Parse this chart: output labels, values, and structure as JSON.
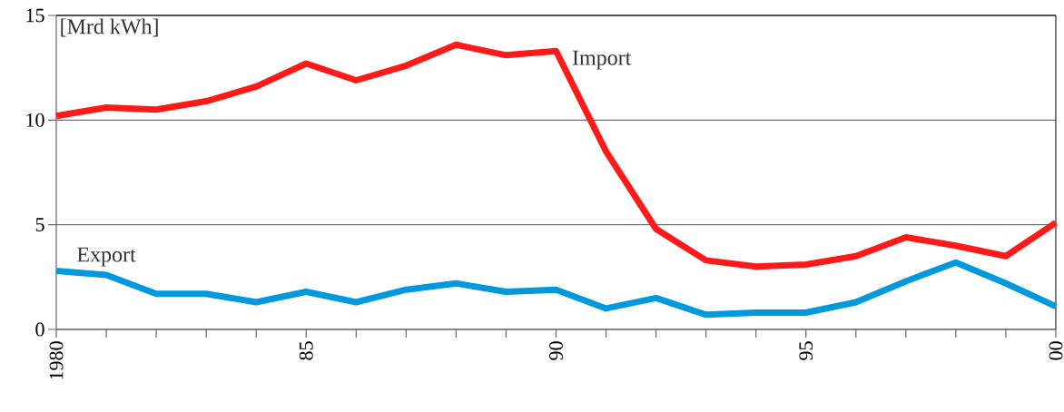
{
  "chart_data": {
    "type": "line",
    "ylabel": "[Mrd kWh]",
    "x": [
      1980,
      1981,
      1982,
      1983,
      1984,
      1985,
      1986,
      1987,
      1988,
      1989,
      1990,
      1991,
      1992,
      1993,
      1994,
      1995,
      1996,
      1997,
      1998,
      1999,
      2000
    ],
    "series": [
      {
        "name": "Import",
        "color": "#ff1a1a",
        "values": [
          10.2,
          10.6,
          10.5,
          10.9,
          11.6,
          12.7,
          11.9,
          12.6,
          13.6,
          13.1,
          13.3,
          8.5,
          4.8,
          3.3,
          3.0,
          3.1,
          3.5,
          4.4,
          4.0,
          3.5,
          5.1
        ]
      },
      {
        "name": "Export",
        "color": "#0099dd",
        "values": [
          2.8,
          2.6,
          1.7,
          1.7,
          1.3,
          1.8,
          1.3,
          1.9,
          2.2,
          1.8,
          1.9,
          1.0,
          1.5,
          0.7,
          0.8,
          0.8,
          1.3,
          2.3,
          3.2,
          2.2,
          1.1
        ]
      }
    ],
    "xlim": [
      1980,
      2000
    ],
    "ylim": [
      0,
      15
    ],
    "xticks": [
      {
        "value": 1980,
        "label": "1980"
      },
      {
        "value": 1981,
        "label": null
      },
      {
        "value": 1982,
        "label": null
      },
      {
        "value": 1983,
        "label": null
      },
      {
        "value": 1984,
        "label": null
      },
      {
        "value": 1985,
        "label": "85"
      },
      {
        "value": 1986,
        "label": null
      },
      {
        "value": 1987,
        "label": null
      },
      {
        "value": 1988,
        "label": null
      },
      {
        "value": 1989,
        "label": null
      },
      {
        "value": 1990,
        "label": "90"
      },
      {
        "value": 1991,
        "label": null
      },
      {
        "value": 1992,
        "label": null
      },
      {
        "value": 1993,
        "label": null
      },
      {
        "value": 1994,
        "label": null
      },
      {
        "value": 1995,
        "label": "95"
      },
      {
        "value": 1996,
        "label": null
      },
      {
        "value": 1997,
        "label": null
      },
      {
        "value": 1998,
        "label": null
      },
      {
        "value": 1999,
        "label": null
      },
      {
        "value": 2000,
        "label": "00"
      }
    ],
    "yticks": [
      0,
      5,
      10,
      15
    ],
    "grid": "y",
    "marker": "none",
    "line_style": "solid"
  }
}
